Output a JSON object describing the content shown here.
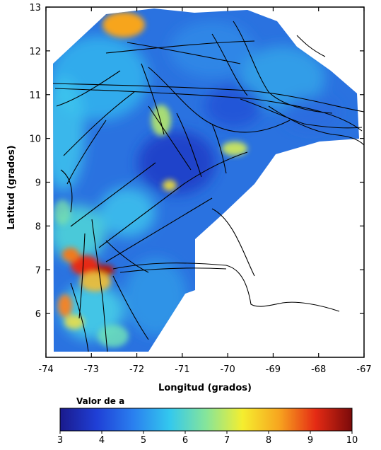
{
  "map": {
    "x_axis_label": "Longitud (grados)",
    "y_axis_label": "Latitud (grados)",
    "x_ticks": [
      "-74",
      "-73",
      "-72",
      "-71",
      "-70",
      "-69",
      "-68",
      "-67"
    ],
    "y_ticks": [
      "6",
      "7",
      "8",
      "9",
      "10",
      "11",
      "12",
      "13"
    ],
    "x_range": [
      -74,
      -67
    ],
    "y_range": [
      5,
      13
    ]
  },
  "colorbar": {
    "title": "Valor de a",
    "ticks": [
      "3",
      "4",
      "5",
      "6",
      "7",
      "8",
      "9",
      "10"
    ],
    "range": [
      3,
      10
    ],
    "colors": [
      "#1a1a8c",
      "#1f3fd6",
      "#2a7fef",
      "#33c8ee",
      "#86e59a",
      "#f5ee2f",
      "#f7a51f",
      "#e52b14",
      "#7a0a0a"
    ]
  },
  "colors": {
    "background_field": "#2a72e0",
    "faults": "#000000",
    "border": "#000000"
  }
}
